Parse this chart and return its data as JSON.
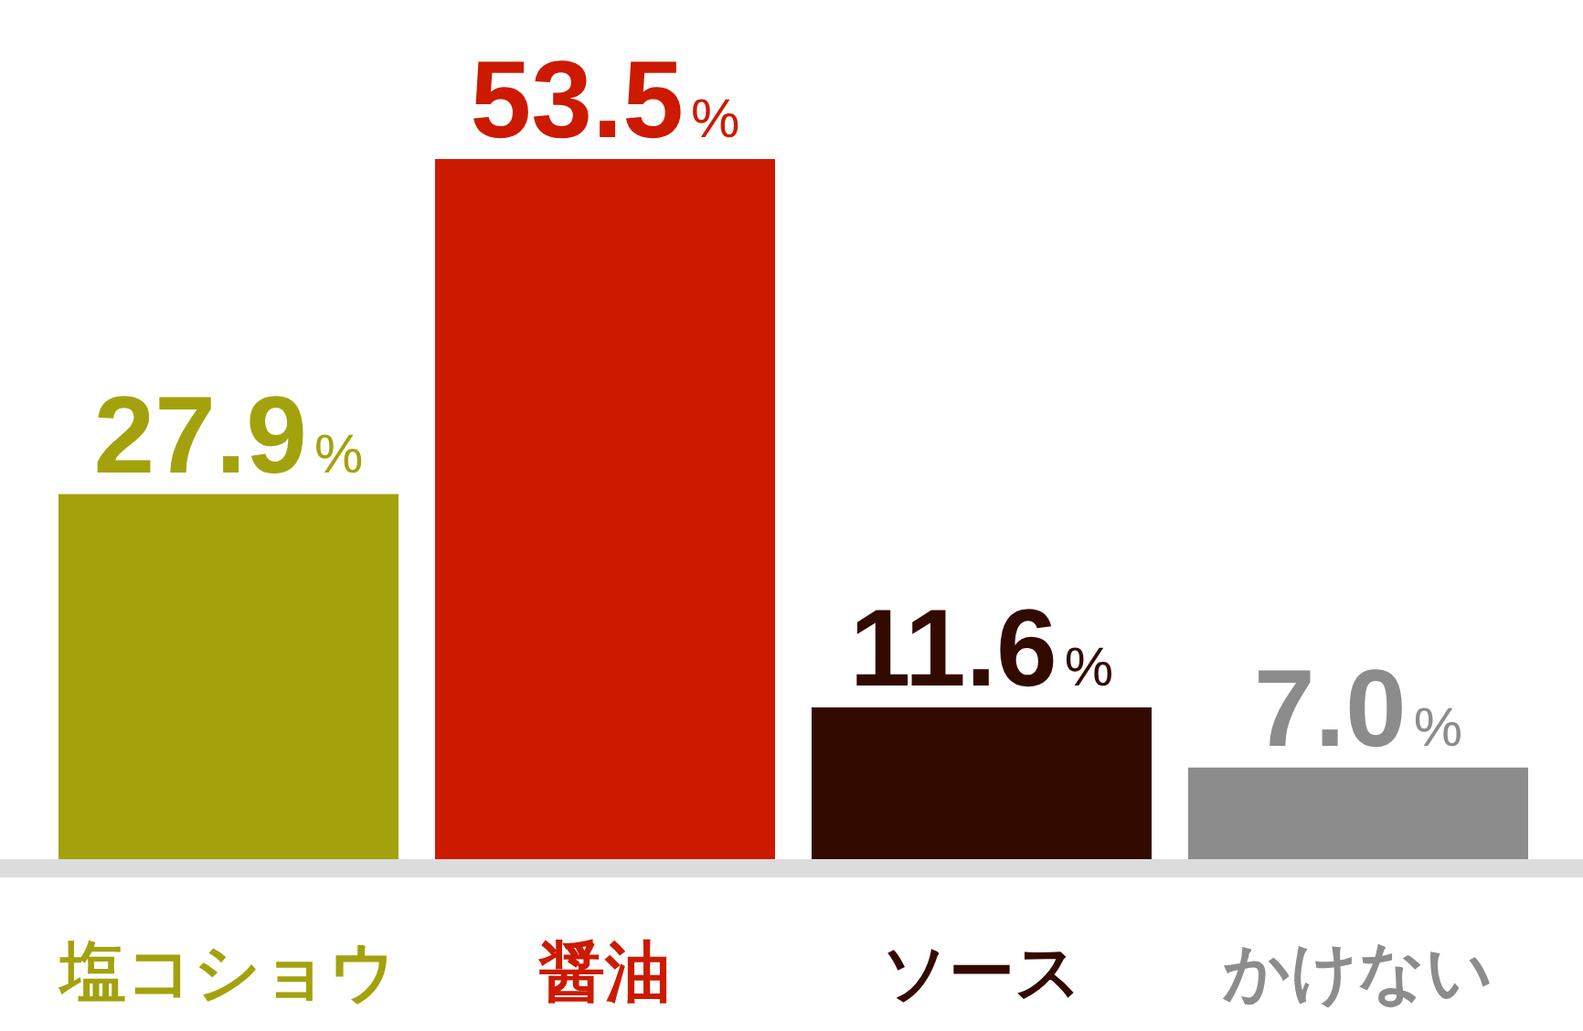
{
  "chart_data": {
    "type": "bar",
    "categories": [
      "塩コショウ",
      "醤油",
      "ソース",
      "かけない"
    ],
    "values": [
      27.9,
      53.5,
      11.6,
      7.0
    ],
    "colors": [
      "#a3a20d",
      "#cc1a00",
      "#330a00",
      "#8c8c8c"
    ],
    "value_labels": [
      "27.9%",
      "53.5%",
      "11.6%",
      "7.0%"
    ]
  }
}
